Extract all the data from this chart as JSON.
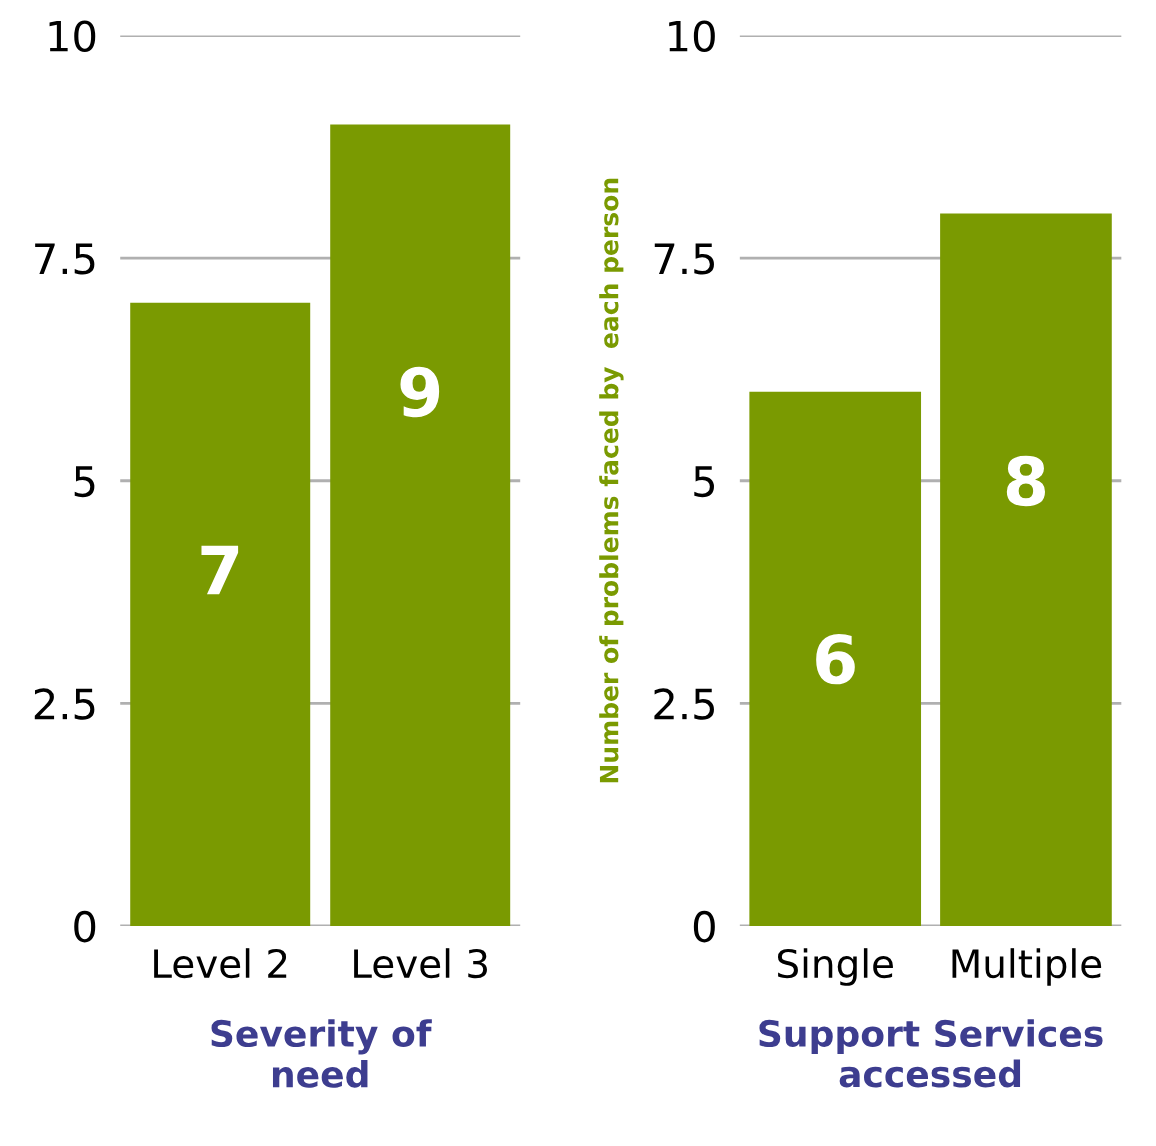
{
  "chart_data": [
    {
      "type": "bar",
      "categories": [
        "Level 2",
        "Level 3"
      ],
      "values": [
        7,
        9
      ],
      "color": "#7a9a01",
      "xlabel": "Severity of need",
      "ylim": [
        0,
        10
      ],
      "yticks": [
        0,
        2.5,
        5,
        7.5,
        10
      ],
      "grid": "y",
      "data_labels": true
    },
    {
      "type": "bar",
      "categories": [
        "Single",
        "Multiple"
      ],
      "values": [
        6,
        8
      ],
      "color": "#7a9a01",
      "xlabel": "Support Services accessed",
      "ylabel": "Number of problems faced by  each person",
      "ylim": [
        0,
        10
      ],
      "yticks": [
        0,
        2.5,
        5,
        7.5,
        10
      ],
      "grid": "y",
      "data_labels": true
    }
  ]
}
